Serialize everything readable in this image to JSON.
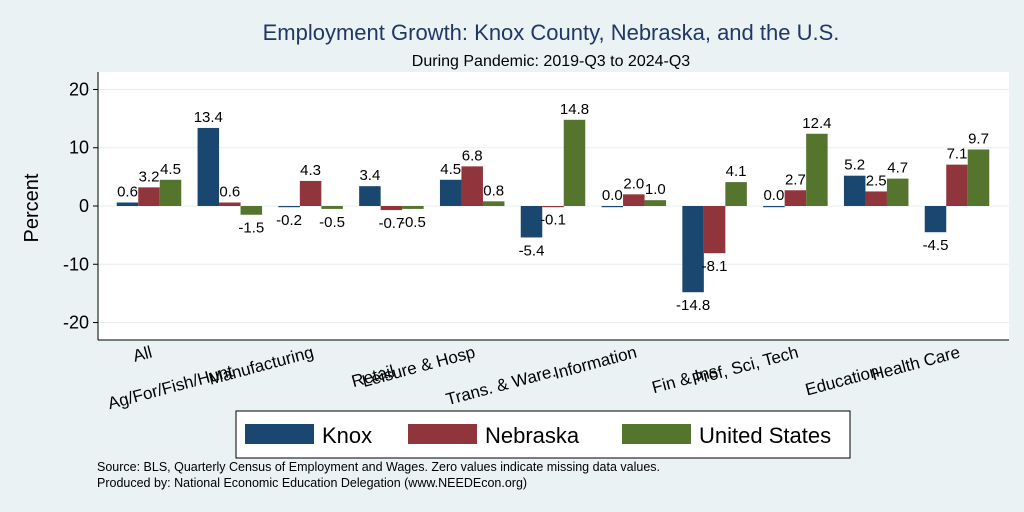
{
  "chart_data": {
    "type": "bar",
    "title": "Employment Growth: Knox County, Nebraska, and the U.S.",
    "subtitle": "During Pandemic: 2019-Q3 to 2024-Q3",
    "ylabel": "Percent",
    "xlabel": "",
    "ylim": [
      -23,
      23
    ],
    "yticks": [
      -20,
      -10,
      0,
      10,
      20
    ],
    "categories": [
      "All",
      "Ag/For/Fish/Hunt",
      "Manufacturing",
      "Retail",
      "Leisure & Hosp",
      "Trans. & Ware.",
      "Information",
      "Fin & Ins",
      "Prof, Sci, Tech",
      "Education",
      "Health Care"
    ],
    "series": [
      {
        "name": "Knox",
        "color": "#1a476f",
        "values": [
          0.6,
          13.4,
          -0.2,
          3.4,
          4.5,
          -5.4,
          0.0,
          -14.8,
          0.0,
          5.2,
          -4.5
        ],
        "labels": [
          "0.6",
          "13.4",
          "-0.2",
          "3.4",
          "4.5",
          "-5.4",
          "0.0",
          "-14.8",
          "0.0",
          "5.2",
          "-4.5"
        ]
      },
      {
        "name": "Nebraska",
        "color": "#90353b",
        "values": [
          3.2,
          0.6,
          4.3,
          -0.7,
          6.8,
          -0.1,
          2.0,
          -8.1,
          2.7,
          2.5,
          7.1
        ],
        "labels": [
          "3.2",
          "0.6",
          "4.3",
          "-0.7",
          "6.8",
          "-0.1",
          "2.0",
          "-8.1",
          "2.7",
          "2.5",
          "7.1"
        ]
      },
      {
        "name": "United States",
        "color": "#55752f",
        "values": [
          4.5,
          -1.5,
          -0.5,
          -0.5,
          0.8,
          14.8,
          1.0,
          4.1,
          12.4,
          4.7,
          9.7
        ],
        "labels": [
          "4.5",
          "-1.5",
          "-0.5",
          "-0.5",
          "0.8",
          "14.8",
          "1.0",
          "4.1",
          "12.4",
          "4.7",
          "9.7"
        ]
      }
    ],
    "legend": [
      "Knox",
      "Nebraska",
      "United States"
    ],
    "legend_position": "bottom",
    "grid": true
  },
  "footer": {
    "source": "Source: BLS, Quarterly Census of Employment and Wages. Zero values indicate missing data values.",
    "produced": "Produced by: National Economic Education Delegation (www.NEEDEcon.org)"
  }
}
